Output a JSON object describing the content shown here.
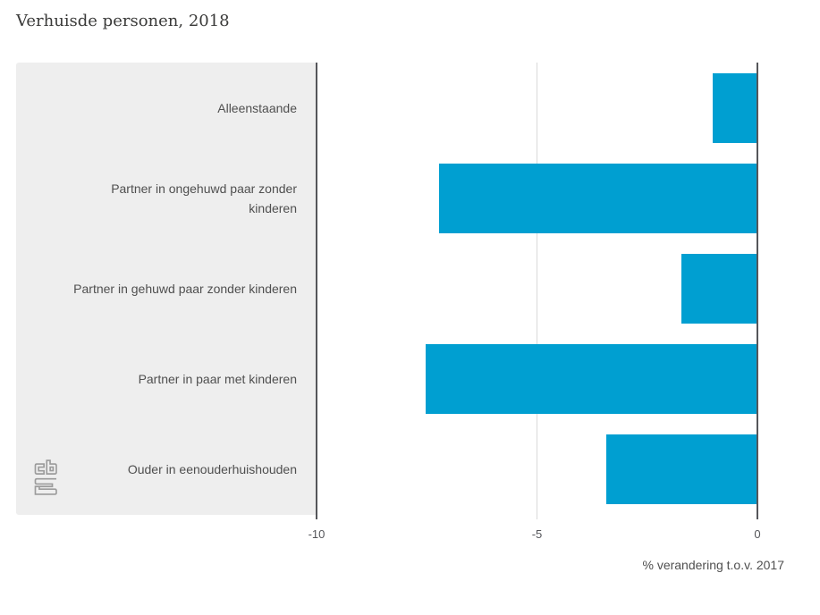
{
  "chart_data": {
    "type": "bar",
    "orientation": "horizontal",
    "title": "Verhuisde personen, 2018",
    "xlabel": "% verandering t.o.v. 2017",
    "categories": [
      "Alleenstaande",
      "Partner in ongehuwd paar zonder kinderen",
      "Partner in gehuwd paar zonder kinderen",
      "Partner in paar met kinderen",
      "Ouder in eenouderhuishouden"
    ],
    "values": [
      -1.0,
      -7.2,
      -1.7,
      -7.5,
      -3.4
    ],
    "xlim": [
      -10,
      0
    ],
    "xticks": [
      -10,
      -5,
      0
    ],
    "xtick_labels": [
      "-10",
      "-5",
      "0"
    ],
    "grid": "vertical gridline at -5, dark axis lines at -10 and 0",
    "legend": "none"
  },
  "branding": {
    "logo": "cbs-logo"
  },
  "colors": {
    "bar": "#009fd1",
    "panel_background": "#eeeeee",
    "axis_dark": "#55565a",
    "grid_light": "#d9d9d9",
    "title_text": "#3a3a39",
    "label_text": "#4f4f4f",
    "tick_text": "#55565a",
    "logo_gray": "#9b9b9b"
  }
}
